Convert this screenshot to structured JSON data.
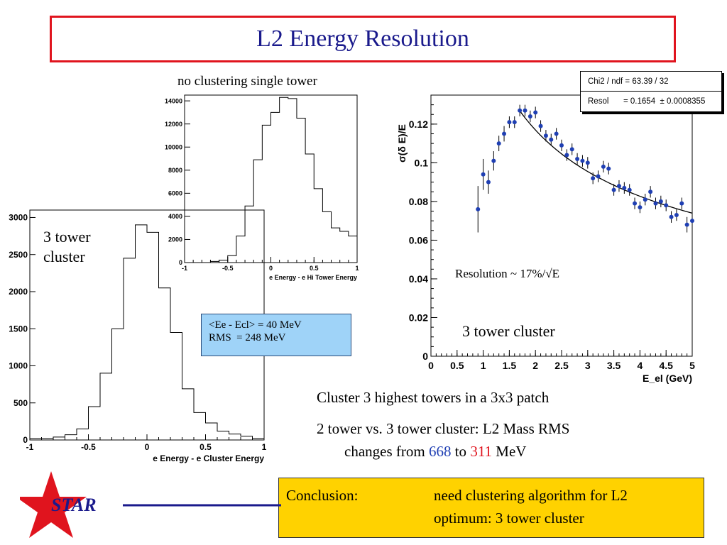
{
  "title": "L2 Energy Resolution",
  "top_hist_label": "no clustering single tower",
  "left_hist_label": [
    "3 tower",
    "cluster"
  ],
  "stats": [
    "<Ee - Ecl> = 40 MeV",
    "RMS  = 248 MeV"
  ],
  "fit_box": {
    "row1_label": "Chi2 / ndf = 63.39 / 32",
    "row2_label": "Resol",
    "row2_value": "= 0.1654  ± 0.0008355"
  },
  "resolution_label": "Resolution ~ 17%/√E",
  "right_plot_label": "3 tower cluster",
  "bullets": {
    "line1": "Cluster 3 highest towers in a 3x3 patch",
    "line2": "2 tower vs. 3 tower cluster: L2 Mass RMS",
    "line3_prefix": "changes from ",
    "line3_v1": "668",
    "line3_mid": " to ",
    "line3_v2": "311",
    "line3_suffix": " MeV"
  },
  "conclusion": {
    "label": "Conclusion:",
    "line1": "need clustering algorithm for L2",
    "line2": "optimum: 3 tower cluster"
  },
  "logo_text": "STAR",
  "colors": {
    "title": "#1a1a8c",
    "border": "#e0141e",
    "points": "#1f3fb3",
    "stats_bg": "#9fd3f8",
    "conclusion_bg": "#ffd200"
  },
  "chart_data": [
    {
      "type": "histogram",
      "xlabel": "e Energy - e Hi Tower Energy",
      "ylabel": "",
      "xlim": [
        -1,
        1
      ],
      "ylim": [
        0,
        14500
      ],
      "xticks": [
        -1,
        -0.5,
        0,
        0.5,
        1
      ],
      "yticks": [
        0,
        2000,
        4000,
        6000,
        8000,
        10000,
        12000,
        14000
      ],
      "bin_edges": [
        -1,
        -0.9,
        -0.8,
        -0.7,
        -0.6,
        -0.5,
        -0.4,
        -0.3,
        -0.2,
        -0.1,
        0,
        0.1,
        0.2,
        0.3,
        0.4,
        0.5,
        0.6,
        0.7,
        0.8,
        0.9,
        1.0
      ],
      "values": [
        0,
        0,
        0,
        100,
        200,
        600,
        2300,
        4900,
        8900,
        11900,
        13000,
        14300,
        14200,
        12500,
        9400,
        6400,
        4400,
        3000,
        2700,
        2300
      ]
    },
    {
      "type": "histogram",
      "xlabel": "e Energy - e Cluster Energy",
      "ylabel": "",
      "xlim": [
        -1,
        1
      ],
      "ylim": [
        0,
        3100
      ],
      "xticks": [
        -1,
        -0.5,
        0,
        0.5,
        1
      ],
      "yticks": [
        0,
        500,
        1000,
        1500,
        2000,
        2500,
        3000
      ],
      "bin_edges": [
        -1,
        -0.9,
        -0.8,
        -0.7,
        -0.6,
        -0.5,
        -0.4,
        -0.3,
        -0.2,
        -0.1,
        0,
        0.1,
        0.2,
        0.3,
        0.4,
        0.5,
        0.6,
        0.7,
        0.8,
        0.9,
        1.0
      ],
      "values": [
        20,
        20,
        40,
        70,
        150,
        450,
        900,
        1500,
        2450,
        2900,
        2800,
        2050,
        1450,
        690,
        370,
        230,
        120,
        80,
        50,
        20
      ]
    },
    {
      "type": "scatter",
      "xlabel": "E_el (GeV)",
      "ylabel": "σ(δ E)/E",
      "xlim": [
        0,
        5
      ],
      "ylim": [
        0,
        0.135
      ],
      "xticks": [
        0,
        0.5,
        1,
        1.5,
        2,
        2.5,
        3,
        3.5,
        4,
        4.5,
        5
      ],
      "yticks": [
        0,
        0.02,
        0.04,
        0.06,
        0.08,
        0.1,
        0.12
      ],
      "x": [
        0.9,
        1.0,
        1.1,
        1.2,
        1.3,
        1.4,
        1.5,
        1.6,
        1.7,
        1.8,
        1.9,
        2.0,
        2.1,
        2.2,
        2.3,
        2.4,
        2.5,
        2.6,
        2.7,
        2.8,
        2.9,
        3.0,
        3.1,
        3.2,
        3.3,
        3.4,
        3.5,
        3.6,
        3.7,
        3.8,
        3.9,
        4.0,
        4.1,
        4.2,
        4.3,
        4.4,
        4.5,
        4.6,
        4.7,
        4.8,
        4.9,
        5.0
      ],
      "y": [
        0.076,
        0.094,
        0.09,
        0.101,
        0.11,
        0.115,
        0.121,
        0.121,
        0.127,
        0.127,
        0.124,
        0.126,
        0.119,
        0.114,
        0.112,
        0.115,
        0.109,
        0.104,
        0.107,
        0.102,
        0.101,
        0.1,
        0.092,
        0.093,
        0.098,
        0.097,
        0.086,
        0.088,
        0.087,
        0.086,
        0.079,
        0.077,
        0.081,
        0.085,
        0.079,
        0.08,
        0.078,
        0.072,
        0.073,
        0.079,
        0.068,
        0.07
      ],
      "y_err": [
        0.012,
        0.008,
        0.006,
        0.005,
        0.004,
        0.004,
        0.003,
        0.003,
        0.003,
        0.003,
        0.003,
        0.003,
        0.003,
        0.003,
        0.003,
        0.003,
        0.003,
        0.003,
        0.003,
        0.003,
        0.003,
        0.003,
        0.003,
        0.003,
        0.003,
        0.003,
        0.003,
        0.003,
        0.003,
        0.003,
        0.003,
        0.003,
        0.003,
        0.003,
        0.003,
        0.003,
        0.003,
        0.003,
        0.003,
        0.003,
        0.004,
        0.004
      ],
      "fit": {
        "function": "Resol/sqrt(E)",
        "Resol": 0.1654,
        "x_range": [
          1.7,
          5.0
        ]
      }
    }
  ]
}
